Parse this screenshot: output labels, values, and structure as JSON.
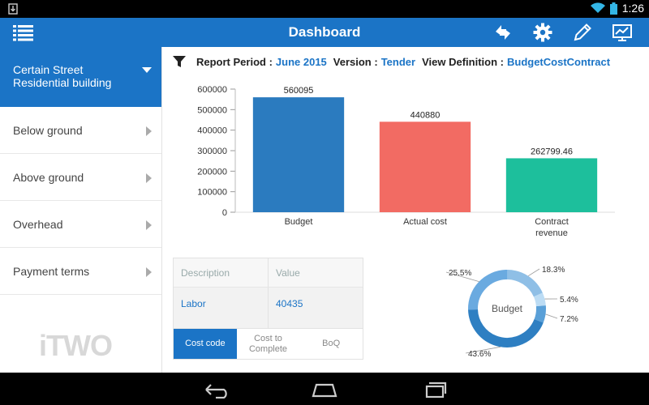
{
  "status_bar": {
    "time": "1:26"
  },
  "app_bar": {
    "title": "Dashboard",
    "actions": [
      "sync-icon",
      "gear-icon",
      "pencil-icon",
      "chart-monitor-icon"
    ]
  },
  "sidebar": {
    "selected": "Certain Street\nResidential building",
    "items": [
      {
        "label": "Below ground"
      },
      {
        "label": "Above ground"
      },
      {
        "label": "Overhead"
      },
      {
        "label": "Payment terms"
      }
    ],
    "logo_text": "iTWO"
  },
  "report": {
    "period_label": "Report Period :",
    "period_value": "June 2015",
    "version_label": "Version :",
    "version_value": "Tender",
    "view_label": "View Definition :",
    "view_value": "BudgetCostContract"
  },
  "chart_data": {
    "type": "bar",
    "categories": [
      "Budget",
      "Actual cost",
      "Contract\nrevenue"
    ],
    "values": [
      560095,
      440880,
      262799.46
    ],
    "value_labels": [
      "560095",
      "440880",
      "262799.46"
    ],
    "colors": [
      "#2b7bbf",
      "#f26b63",
      "#1dbf9c"
    ],
    "ylim": [
      0,
      600000
    ],
    "yticks": [
      0,
      100000,
      200000,
      300000,
      400000,
      500000,
      600000
    ]
  },
  "table": {
    "headers": [
      "Description",
      "Value"
    ],
    "rows": [
      {
        "description": "Labor",
        "value": "40435"
      }
    ],
    "tabs": [
      {
        "label": "Cost code",
        "active": true
      },
      {
        "label": "Cost to\nComplete",
        "active": false
      },
      {
        "label": "BoQ",
        "active": false
      }
    ]
  },
  "donut": {
    "center_label": "Budget",
    "slices": [
      {
        "label": "18.3%",
        "value": 18.3,
        "color": "#8fbfe6"
      },
      {
        "label": "5.4%",
        "value": 5.4,
        "color": "#bcdcf4"
      },
      {
        "label": "7.2%",
        "value": 7.2,
        "color": "#5aa0d8"
      },
      {
        "label": "43.6%",
        "value": 43.6,
        "color": "#2e7fc2"
      },
      {
        "label": "25.5%",
        "value": 25.5,
        "color": "#6aaae0"
      }
    ]
  }
}
